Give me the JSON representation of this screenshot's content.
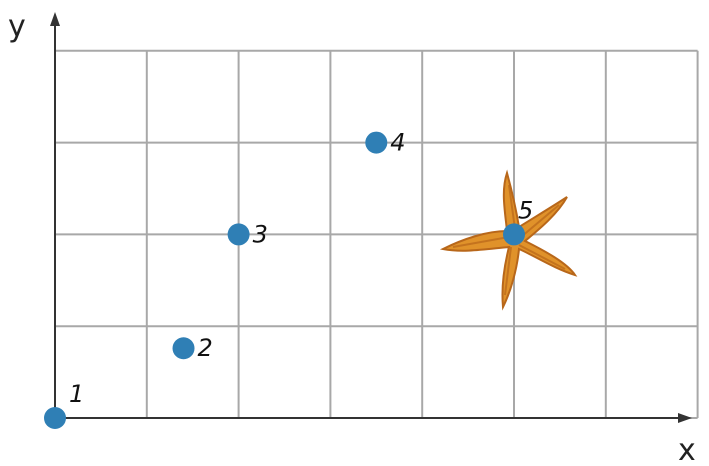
{
  "diagram": {
    "axes": {
      "x_label": "x",
      "y_label": "y"
    },
    "grid": {
      "columns": 7,
      "rows": 4
    },
    "colors": {
      "grid": "#a8a8a8",
      "axis": "#333333",
      "point": "#2f7fb5",
      "starfish": "#e0922a",
      "starfish_dark": "#b8671a"
    },
    "points": [
      {
        "label": "1",
        "x": 0,
        "y": 0
      },
      {
        "label": "2",
        "x": 1.4,
        "y": 0.76
      },
      {
        "label": "3",
        "x": 2,
        "y": 2
      },
      {
        "label": "4",
        "x": 3.5,
        "y": 3
      },
      {
        "label": "5",
        "x": 5,
        "y": 2,
        "marker": "starfish"
      }
    ]
  }
}
